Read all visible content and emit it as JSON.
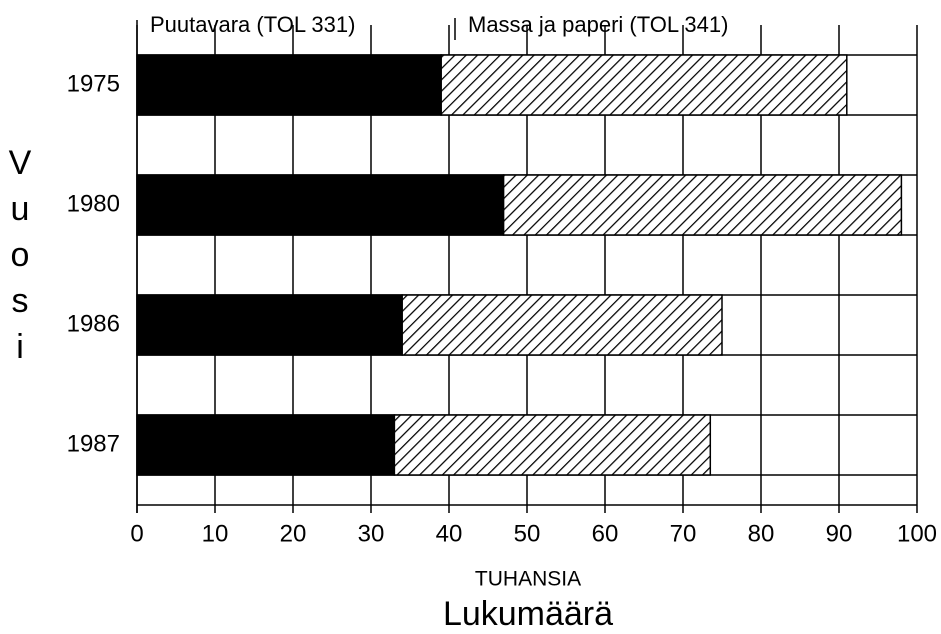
{
  "chart_data": {
    "type": "stacked-bar-horizontal",
    "categories": [
      "1975",
      "1980",
      "1986",
      "1987"
    ],
    "series": [
      {
        "name": "Puutavara (TOL 331)",
        "color": "#000000",
        "values": [
          39,
          47,
          34,
          33
        ]
      },
      {
        "name": "Massa ja paperi (TOL 341)",
        "color": "#000000",
        "pattern": "hatch",
        "values": [
          52,
          51,
          41,
          40.5
        ]
      }
    ],
    "xlim": [
      0,
      100
    ],
    "xticks": [
      0,
      10,
      20,
      30,
      40,
      50,
      60,
      70,
      80,
      90,
      100
    ],
    "x_label_unit": "TUHANSIA",
    "x_label": "Lukumäärä",
    "y_label": "Vuosi",
    "grid": true
  }
}
